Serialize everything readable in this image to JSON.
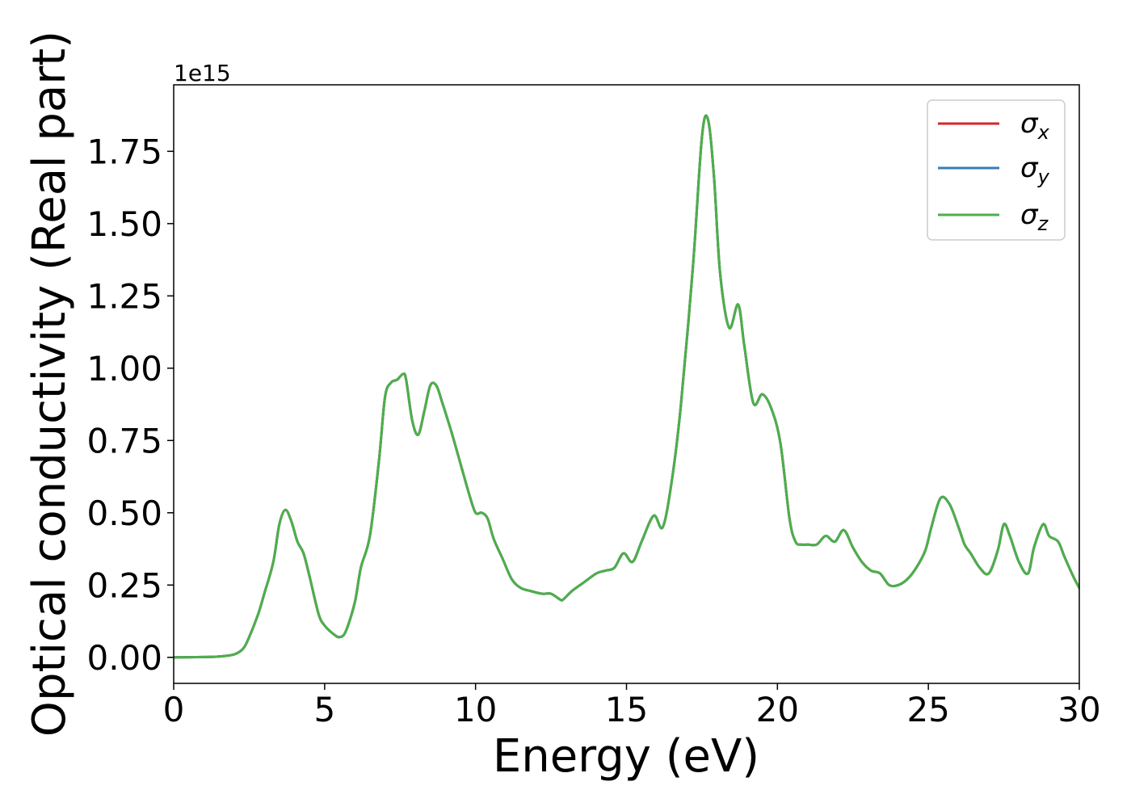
{
  "chart_data": {
    "type": "line",
    "title": "",
    "xlabel": "Energy (eV)",
    "ylabel": "Optical conductivity (Real part)",
    "y_offset_text": "1e15",
    "xlim": [
      0,
      30
    ],
    "ylim": [
      -0.09,
      1.98
    ],
    "y_scale_factor": 1000000000000000.0,
    "x_ticks": [
      0,
      5,
      10,
      15,
      20,
      25,
      30
    ],
    "x_tick_labels": [
      "0",
      "5",
      "10",
      "15",
      "20",
      "25",
      "30"
    ],
    "y_ticks": [
      0.0,
      0.25,
      0.5,
      0.75,
      1.0,
      1.25,
      1.5,
      1.75
    ],
    "y_tick_labels": [
      "0.00",
      "0.25",
      "0.50",
      "0.75",
      "1.00",
      "1.25",
      "1.50",
      "1.75"
    ],
    "grid": false,
    "legend_position": "top-right",
    "x": [
      0,
      1,
      1.5,
      2,
      2.3,
      2.5,
      2.8,
      3.0,
      3.3,
      3.5,
      3.7,
      3.9,
      4.1,
      4.3,
      4.5,
      4.8,
      5.0,
      5.3,
      5.5,
      5.7,
      6.0,
      6.2,
      6.5,
      6.8,
      7.0,
      7.2,
      7.4,
      7.6,
      7.7,
      7.9,
      8.1,
      8.3,
      8.5,
      8.7,
      8.9,
      9.2,
      9.5,
      9.8,
      10.0,
      10.2,
      10.4,
      10.6,
      10.9,
      11.2,
      11.5,
      11.8,
      12.2,
      12.5,
      12.8,
      12.9,
      13.2,
      13.6,
      14.0,
      14.3,
      14.6,
      14.9,
      15.2,
      15.5,
      15.9,
      16.2,
      16.5,
      16.8,
      17.2,
      17.5,
      17.7,
      17.9,
      18.1,
      18.4,
      18.7,
      18.9,
      19.2,
      19.5,
      19.8,
      20.1,
      20.4,
      20.6,
      20.8,
      21.0,
      21.3,
      21.6,
      21.9,
      22.2,
      22.5,
      22.8,
      23.1,
      23.4,
      23.7,
      24.0,
      24.3,
      24.6,
      24.9,
      25.1,
      25.4,
      25.7,
      26.0,
      26.2,
      26.4,
      26.7,
      27.0,
      27.3,
      27.5,
      27.7,
      28.0,
      28.3,
      28.5,
      28.8,
      29.0,
      29.3,
      29.5,
      29.8,
      30.0
    ],
    "series": [
      {
        "name": "σ_x",
        "symbol": "σ",
        "subscript": "x",
        "color": "#d62728",
        "values": [
          0,
          0.001,
          0.003,
          0.01,
          0.03,
          0.07,
          0.15,
          0.22,
          0.33,
          0.46,
          0.51,
          0.47,
          0.4,
          0.36,
          0.28,
          0.15,
          0.11,
          0.08,
          0.07,
          0.09,
          0.19,
          0.31,
          0.42,
          0.68,
          0.9,
          0.95,
          0.96,
          0.98,
          0.96,
          0.82,
          0.77,
          0.85,
          0.94,
          0.94,
          0.88,
          0.78,
          0.67,
          0.56,
          0.5,
          0.5,
          0.48,
          0.41,
          0.34,
          0.27,
          0.24,
          0.23,
          0.22,
          0.22,
          0.2,
          0.2,
          0.23,
          0.26,
          0.29,
          0.3,
          0.31,
          0.36,
          0.33,
          0.4,
          0.49,
          0.45,
          0.61,
          0.87,
          1.35,
          1.8,
          1.86,
          1.66,
          1.33,
          1.14,
          1.22,
          1.08,
          0.88,
          0.91,
          0.86,
          0.74,
          0.48,
          0.4,
          0.39,
          0.39,
          0.39,
          0.42,
          0.4,
          0.44,
          0.38,
          0.33,
          0.3,
          0.29,
          0.25,
          0.25,
          0.27,
          0.31,
          0.37,
          0.45,
          0.55,
          0.53,
          0.45,
          0.39,
          0.36,
          0.31,
          0.29,
          0.37,
          0.46,
          0.42,
          0.33,
          0.29,
          0.38,
          0.46,
          0.42,
          0.4,
          0.35,
          0.28,
          0.24
        ]
      },
      {
        "name": "σ_y",
        "symbol": "σ",
        "subscript": "y",
        "color": "#3a7cb7",
        "values": [
          0,
          0.001,
          0.003,
          0.01,
          0.03,
          0.07,
          0.15,
          0.22,
          0.33,
          0.46,
          0.51,
          0.47,
          0.4,
          0.36,
          0.28,
          0.15,
          0.11,
          0.08,
          0.07,
          0.09,
          0.19,
          0.31,
          0.42,
          0.68,
          0.9,
          0.95,
          0.96,
          0.98,
          0.96,
          0.82,
          0.77,
          0.85,
          0.94,
          0.94,
          0.88,
          0.78,
          0.67,
          0.56,
          0.5,
          0.5,
          0.48,
          0.41,
          0.34,
          0.27,
          0.24,
          0.23,
          0.22,
          0.22,
          0.2,
          0.2,
          0.23,
          0.26,
          0.29,
          0.3,
          0.31,
          0.36,
          0.33,
          0.4,
          0.49,
          0.45,
          0.61,
          0.87,
          1.35,
          1.8,
          1.86,
          1.66,
          1.33,
          1.14,
          1.22,
          1.08,
          0.88,
          0.91,
          0.86,
          0.74,
          0.48,
          0.4,
          0.39,
          0.39,
          0.39,
          0.42,
          0.4,
          0.44,
          0.38,
          0.33,
          0.3,
          0.29,
          0.25,
          0.25,
          0.27,
          0.31,
          0.37,
          0.45,
          0.55,
          0.53,
          0.45,
          0.39,
          0.36,
          0.31,
          0.29,
          0.37,
          0.46,
          0.42,
          0.33,
          0.29,
          0.38,
          0.46,
          0.42,
          0.4,
          0.35,
          0.28,
          0.24
        ]
      },
      {
        "name": "σ_z",
        "symbol": "σ",
        "subscript": "z",
        "color": "#4daf4a",
        "values": [
          0,
          0.001,
          0.003,
          0.01,
          0.03,
          0.07,
          0.15,
          0.22,
          0.33,
          0.46,
          0.51,
          0.47,
          0.4,
          0.36,
          0.28,
          0.15,
          0.11,
          0.08,
          0.07,
          0.09,
          0.19,
          0.31,
          0.42,
          0.68,
          0.9,
          0.95,
          0.96,
          0.98,
          0.96,
          0.82,
          0.77,
          0.85,
          0.94,
          0.94,
          0.88,
          0.78,
          0.67,
          0.56,
          0.5,
          0.5,
          0.48,
          0.41,
          0.34,
          0.27,
          0.24,
          0.23,
          0.22,
          0.22,
          0.2,
          0.2,
          0.23,
          0.26,
          0.29,
          0.3,
          0.31,
          0.36,
          0.33,
          0.4,
          0.49,
          0.45,
          0.61,
          0.87,
          1.35,
          1.8,
          1.86,
          1.66,
          1.33,
          1.14,
          1.22,
          1.08,
          0.88,
          0.91,
          0.86,
          0.74,
          0.48,
          0.4,
          0.39,
          0.39,
          0.39,
          0.42,
          0.4,
          0.44,
          0.38,
          0.33,
          0.3,
          0.29,
          0.25,
          0.25,
          0.27,
          0.31,
          0.37,
          0.45,
          0.55,
          0.53,
          0.45,
          0.39,
          0.36,
          0.31,
          0.29,
          0.37,
          0.46,
          0.42,
          0.33,
          0.29,
          0.38,
          0.46,
          0.42,
          0.4,
          0.35,
          0.28,
          0.24
        ]
      }
    ]
  }
}
